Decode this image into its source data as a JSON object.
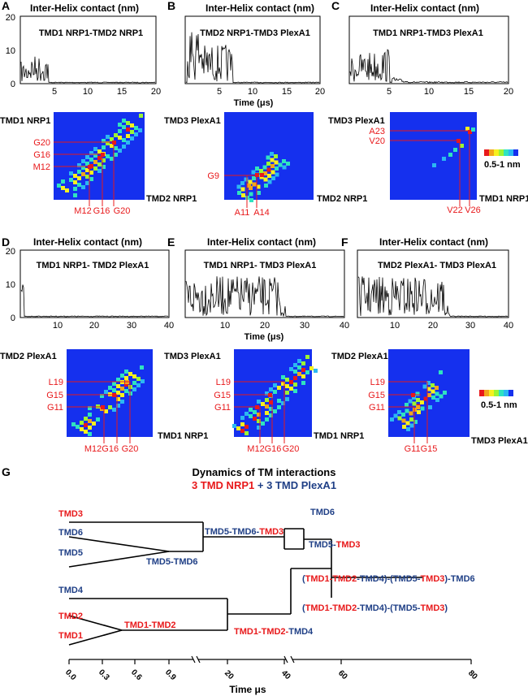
{
  "row1": {
    "panels": [
      {
        "letter": "A",
        "heading": "Inter-Helix contact (nm)",
        "pair": "TMD1 NRP1-TMD2 NRP1"
      },
      {
        "letter": "B",
        "heading": "Inter-Helix contact (nm)",
        "pair": "TMD2 NRP1-TMD3 PlexA1"
      },
      {
        "letter": "C",
        "heading": "Inter-Helix contact (nm)",
        "pair": "TMD1 NRP1-TMD3 PlexA1"
      }
    ],
    "yticks": [
      "0",
      "10",
      "20"
    ],
    "xticks": [
      "5",
      "10",
      "15",
      "20"
    ],
    "xlabel": "Time (μs)"
  },
  "row2": {
    "maps": [
      {
        "ylab": "TMD1 NRP1",
        "xlab": "TMD2 NRP1",
        "ytick": [
          "G20",
          "G16",
          "M12"
        ],
        "xtick": [
          "M12",
          "G16",
          "G20"
        ]
      },
      {
        "ylab": "TMD3 PlexA1",
        "xlab": "TMD2 NRP1",
        "ytick": [
          "G9"
        ],
        "xtick": [
          "A11",
          "A14"
        ]
      },
      {
        "ylab": "TMD3 PlexA1",
        "xlab": "TMD1 NRP1",
        "ytick": [
          "A23",
          "V20"
        ],
        "xtick": [
          "V22",
          "V26"
        ]
      }
    ],
    "legend_label": "0.5-1 nm"
  },
  "row3": {
    "panels": [
      {
        "letter": "D",
        "heading": "Inter-Helix contact (nm)",
        "pair": "TMD1 NRP1- TMD2 PlexA1"
      },
      {
        "letter": "E",
        "heading": "Inter-Helix contact (nm)",
        "pair": "TMD1 NRP1- TMD3 PlexA1"
      },
      {
        "letter": "F",
        "heading": "Inter-Helix contact (nm)",
        "pair": "TMD2 PlexA1- TMD3 PlexA1"
      }
    ],
    "yticks": [
      "0",
      "10",
      "20"
    ],
    "xticks": [
      "10",
      "20",
      "30",
      "40"
    ],
    "xlabel": "Time (μs)"
  },
  "row4": {
    "maps": [
      {
        "ylab": "TMD2 PlexA1",
        "xlab": "TMD1 NRP1",
        "ytick": [
          "L19",
          "G15",
          "G11"
        ],
        "xtick": [
          "M12G16",
          "G20"
        ]
      },
      {
        "ylab": "TMD3 PlexA1",
        "xlab": "TMD1 NRP1",
        "ytick": [
          "L19",
          "G15",
          "G11"
        ],
        "xtick": [
          "M12",
          "G16",
          "G20"
        ]
      },
      {
        "ylab": "TMD2 PlexA1",
        "xlab": "TMD3 PlexA1",
        "ytick": [
          "L19",
          "G15",
          "G11"
        ],
        "xtick": [
          "G11G15"
        ]
      }
    ],
    "legend_label": "0.5-1 nm"
  },
  "dendro": {
    "letter": "G",
    "title": "Dynamics of TM interactions",
    "subtitle_a": "3 TMD NRP1",
    "subtitle_plus": "+",
    "subtitle_b": "3 TMD PlexA1",
    "leaves": {
      "tmd3": "TMD3",
      "tmd6": "TMD6",
      "tmd5": "TMD5",
      "tmd4": "TMD4",
      "tmd2": "TMD2",
      "tmd1": "TMD1"
    },
    "nodes": {
      "tmd5tmd6": "TMD5-TMD6",
      "tmd5tmd6tmd3_a": "TMD5-TMD6-",
      "tmd5tmd6tmd3_b": "TMD3",
      "tmd1tmd2": "TMD1-TMD2",
      "tmd1tmd2tmd4_a": "TMD1-TMD2-",
      "tmd1tmd2tmd4_b": "TMD4",
      "n_tmd6": "TMD6",
      "tmd5tmd3_a": "TMD5-",
      "tmd5tmd3_b": "TMD3",
      "big1": [
        "(",
        "TMD1-TMD2",
        "-TMD4)-(TMD5-",
        "TMD3",
        ")-TMD6"
      ],
      "big2": [
        "(",
        "TMD1-TMD2",
        "-TMD4)-(TMD5-",
        "TMD3",
        ")"
      ]
    },
    "xticks": [
      "0.0",
      "0.3",
      "0.6",
      "0.9",
      "20",
      "40",
      "60",
      "80"
    ],
    "xlabel": "Time μs"
  },
  "colors": {
    "red": "#e8191b",
    "blue": "#1f3f86",
    "heatmap_bg": "#1530ee"
  }
}
